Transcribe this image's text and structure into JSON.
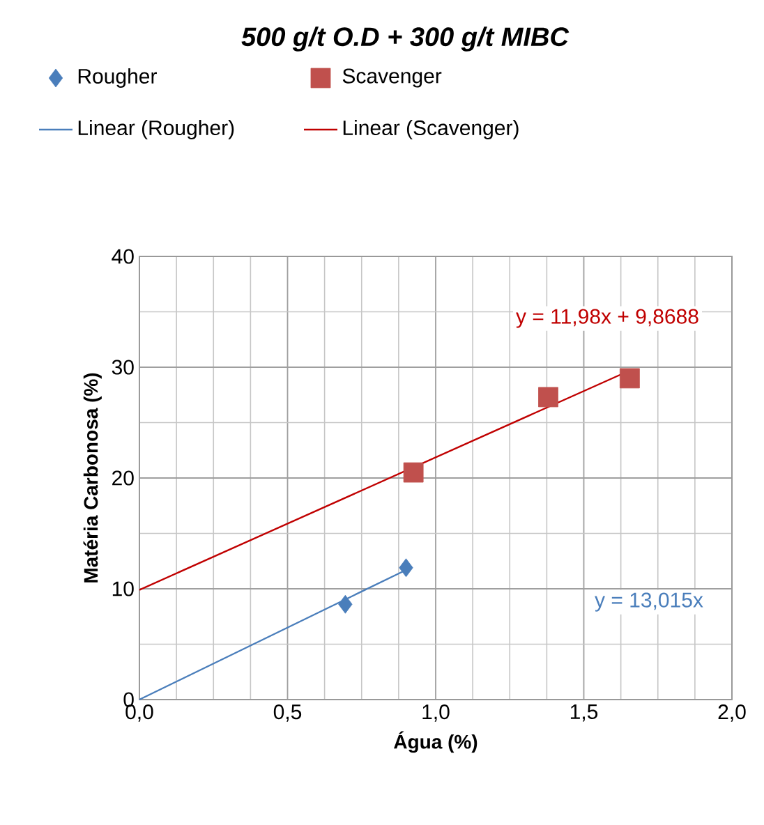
{
  "chart_data": {
    "type": "scatter",
    "title": "500 g/t O.D + 300 g/t MIBC",
    "xlabel": "Água (%)",
    "ylabel": "Matéria Carbonosa (%)",
    "series": [
      {
        "name": "Rougher",
        "type": "scatter",
        "marker": "diamond",
        "color": "#4a7ebb",
        "x": [
          0.695,
          0.9
        ],
        "values": [
          8.6,
          11.9
        ]
      },
      {
        "name": "Scavenger",
        "type": "scatter",
        "marker": "square",
        "color": "#c0504d",
        "x": [
          0.925,
          1.38,
          1.655
        ],
        "values": [
          20.5,
          27.3,
          29.0
        ]
      },
      {
        "name": "Linear (Rougher)",
        "type": "line",
        "marker": "none",
        "color": "#4a7ebb",
        "x": [
          0,
          0.9
        ],
        "values": [
          0,
          11.7
        ]
      },
      {
        "name": "Linear (Scavenger)",
        "type": "line",
        "marker": "none",
        "color": "#c00000",
        "x": [
          0,
          1.655
        ],
        "values": [
          9.9,
          29.7
        ]
      }
    ],
    "annotations": [
      "y = 11,98x + 9,8688",
      "y = 13,015x"
    ],
    "xlim": [
      0,
      2
    ],
    "ylim": [
      0,
      40
    ],
    "xticks": [
      {
        "value": 0,
        "label": "0,0"
      },
      {
        "value": 0.5,
        "label": "0,5"
      },
      {
        "value": 1,
        "label": "1,0"
      },
      {
        "value": 1.5,
        "label": "1,5"
      },
      {
        "value": 2,
        "label": "2,0"
      }
    ],
    "yticks": [
      0,
      10,
      20,
      30,
      40
    ],
    "grid": true,
    "legend": "top"
  }
}
